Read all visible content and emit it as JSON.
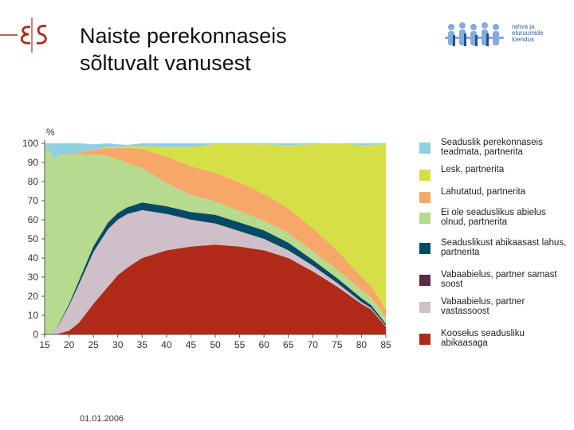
{
  "header": {
    "title_line1": "Naiste perekonnaseis",
    "title_line2": "sõltuvalt vanusest"
  },
  "logos": {
    "left_logo": "ES",
    "right_logo_lines": [
      "rahva ja",
      "eluruumide",
      "loendus"
    ]
  },
  "footer": {
    "date": "01.01.2006"
  },
  "colors": {
    "unknown": "#8fd0e0",
    "widow": "#d6df46",
    "divorced": "#f7a768",
    "never_married": "#b6da8e",
    "separated": "#074a66",
    "cohab_same": "#5b2a46",
    "cohab_opposite": "#cebfc8",
    "married": "#b02a17"
  },
  "chart_data": {
    "type": "area",
    "stacked": true,
    "y_unit": "%",
    "ylim": [
      0,
      100
    ],
    "xlim": [
      15,
      85
    ],
    "x_ticks": [
      15,
      20,
      25,
      30,
      35,
      40,
      45,
      50,
      55,
      60,
      65,
      70,
      75,
      80,
      85
    ],
    "y_ticks": [
      0,
      10,
      20,
      30,
      40,
      50,
      60,
      70,
      80,
      90,
      100
    ],
    "grid": false,
    "legend_position": "right",
    "x": [
      15,
      16,
      17,
      18,
      20,
      22,
      25,
      28,
      30,
      32,
      35,
      40,
      45,
      50,
      55,
      60,
      65,
      70,
      75,
      80,
      82,
      85
    ],
    "series": [
      {
        "name": "Koosełus seadusliku abikaasaga",
        "key": "married",
        "color_key": "married",
        "values": [
          0,
          0,
          0,
          0.5,
          2,
          6,
          16,
          25,
          31,
          35,
          40,
          44,
          46,
          47,
          46,
          44,
          40,
          33,
          25,
          16,
          13,
          4
        ]
      },
      {
        "name": "Vabaabielus, partner vastassoost",
        "key": "cohab_opposite",
        "color_key": "cohab_opposite",
        "values": [
          0,
          0.5,
          2,
          5,
          13,
          20,
          27,
          30,
          29,
          28,
          25,
          19,
          14,
          11,
          8,
          6,
          4,
          3,
          2,
          1,
          0.8,
          0.5
        ]
      },
      {
        "name": "Vabaabielus, partner samast soost",
        "key": "cohab_same",
        "color_key": "cohab_same",
        "values": [
          0,
          0,
          0,
          0,
          0,
          0,
          0.1,
          0.1,
          0.1,
          0.1,
          0.1,
          0.1,
          0.1,
          0.1,
          0.1,
          0,
          0,
          0,
          0,
          0,
          0,
          0
        ]
      },
      {
        "name": "Seaduslikust abikaasast lahus, partnerita",
        "key": "separated",
        "color_key": "separated",
        "values": [
          0,
          0,
          0,
          0.5,
          1,
          2,
          3,
          3.5,
          3.5,
          3.5,
          4,
          4,
          4,
          4.5,
          4.5,
          4.5,
          4,
          3,
          2.5,
          2,
          1.5,
          1
        ]
      },
      {
        "name": "Ei ole seaduslikus abielus olnud, partnerita",
        "key": "never_married",
        "color_key": "never_married",
        "values": [
          100,
          95,
          90,
          88,
          78,
          66,
          48,
          35,
          28,
          23,
          18,
          12,
          9,
          7,
          6,
          5,
          5,
          4.5,
          4.5,
          4,
          4,
          3.5
        ]
      },
      {
        "name": "Lahutatud, partnerita",
        "key": "divorced",
        "color_key": "divorced",
        "values": [
          0,
          0,
          0,
          0,
          0.5,
          1,
          2.5,
          4,
          6,
          8,
          10,
          14,
          15,
          15,
          15,
          14,
          13,
          12,
          10,
          7,
          6,
          4
        ]
      },
      {
        "name": "Lesk, partnerita",
        "key": "widow",
        "color_key": "widow",
        "values": [
          0,
          0,
          0,
          0,
          0,
          0,
          0.2,
          0.4,
          0.5,
          0.8,
          1.5,
          5,
          10,
          15,
          20,
          26,
          33,
          44,
          56,
          69,
          74,
          86.5
        ]
      },
      {
        "name": "Seaduslik perekonnaseis teadmata, partnerita",
        "key": "unknown",
        "color_key": "unknown",
        "values": [
          0,
          4.5,
          8,
          6,
          5.5,
          5,
          2.7,
          2,
          1.4,
          0.8,
          1.4,
          1.9,
          1.9,
          0.4,
          0.4,
          0.5,
          1,
          0.5,
          0.5,
          1,
          0.7,
          0.5
        ]
      }
    ],
    "legend": [
      {
        "key": "unknown",
        "label": "Seaduslik perekonnaseis teadmata, partnerita"
      },
      {
        "key": "widow",
        "label": "Lesk, partnerita"
      },
      {
        "key": "divorced",
        "label": "Lahutatud, partnerita"
      },
      {
        "key": "never_married",
        "label": "Ei ole seaduslikus abielus olnud, partnerita"
      },
      {
        "key": "separated",
        "label": "Seaduslikust abikaasast lahus, partnerita"
      },
      {
        "key": "cohab_same",
        "label": "Vabaabielus, partner samast soost"
      },
      {
        "key": "cohab_opposite",
        "label": "Vabaabielus, partner vastassoost"
      },
      {
        "key": "married",
        "label": "Koosełus seadusliku abikaasaga"
      }
    ]
  }
}
